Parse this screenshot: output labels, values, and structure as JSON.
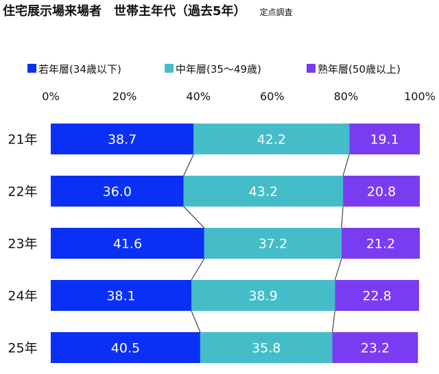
{
  "header": {
    "title": "住宅展示場来場者　世帯主年代（過去5年）",
    "subtitle": "定点調査"
  },
  "colors": {
    "young": "#0a2ff5",
    "middle": "#45bdc9",
    "senior": "#7a3cf0",
    "connector": "#222222"
  },
  "chart_data": {
    "type": "bar",
    "orientation": "horizontal",
    "stacked": true,
    "percent": true,
    "title": "住宅展示場来場者　世帯主年代（過去5年）",
    "subtitle": "定点調査",
    "categories": [
      "21年",
      "22年",
      "23年",
      "24年",
      "25年"
    ],
    "series": [
      {
        "name": "若年層(34歳以下)",
        "values": [
          38.7,
          36.0,
          41.6,
          38.1,
          40.5
        ],
        "labels": [
          "38.7",
          "36.0",
          "41.6",
          "38.1",
          "40.5"
        ]
      },
      {
        "name": "中年層(35～49歳)",
        "values": [
          42.2,
          43.2,
          37.2,
          38.9,
          35.8
        ],
        "labels": [
          "42.2",
          "43.2",
          "37.2",
          "38.9",
          "35.8"
        ]
      },
      {
        "name": "熟年層(50歳以上)",
        "values": [
          19.1,
          20.8,
          21.2,
          22.8,
          23.2
        ],
        "labels": [
          "19.1",
          "20.8",
          "21.2",
          "22.8",
          "23.2"
        ]
      }
    ],
    "xlim": [
      0,
      100
    ],
    "xticks": [
      "0%",
      "20%",
      "40%",
      "60%",
      "80%",
      "100%"
    ],
    "xtick_values": [
      0,
      20,
      40,
      60,
      80,
      100
    ],
    "legend_position": "top",
    "axis_position": "top",
    "series_lines": true
  }
}
